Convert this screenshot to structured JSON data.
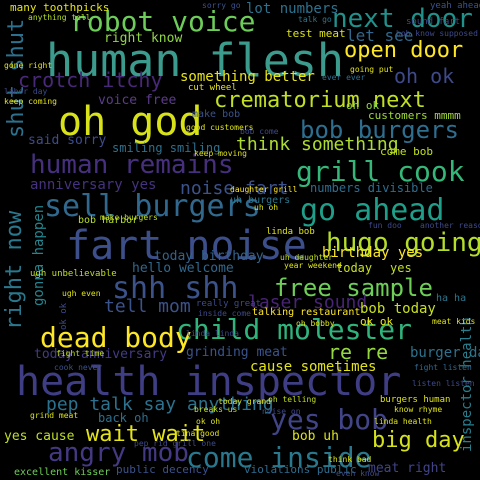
{
  "words": [
    {
      "text": "human flesh",
      "color": "#3b9b8d"
    },
    {
      "text": "health inspector",
      "color": "#3f3e85"
    },
    {
      "text": "fart noise",
      "color": "#3c4f8a"
    },
    {
      "text": "oh god",
      "color": "#d8e219"
    },
    {
      "text": "robot voice",
      "color": "#6dcd59"
    },
    {
      "text": "next door",
      "color": "#21918c"
    },
    {
      "text": "child molester",
      "color": "#2fb47c"
    },
    {
      "text": "crematorium next",
      "color": "#c2df23"
    },
    {
      "text": "bob burgers",
      "color": "#2e6e8e"
    },
    {
      "text": "human remains",
      "color": "#46307e"
    },
    {
      "text": "grill cook",
      "color": "#35b779"
    },
    {
      "text": "sell burgers",
      "color": "#31688e"
    },
    {
      "text": "go ahead",
      "color": "#1f9e89"
    },
    {
      "text": "come inside",
      "color": "#2a788e"
    },
    {
      "text": "dead body",
      "color": "#fde725"
    },
    {
      "text": "shh shh",
      "color": "#3b528b"
    },
    {
      "text": "hugo going",
      "color": "#b5de2b"
    },
    {
      "text": "free sample",
      "color": "#6ece58"
    },
    {
      "text": "yes bob",
      "color": "#414487"
    },
    {
      "text": "angry mob",
      "color": "#443983"
    },
    {
      "text": "wait wait",
      "color": "#e5e419"
    },
    {
      "text": "open door",
      "color": "#fde725"
    },
    {
      "text": "big day",
      "color": "#d5e21a"
    },
    {
      "text": "pep talk say anything",
      "color": "#2c728e"
    },
    {
      "text": "shut shut",
      "color": "#2c728e"
    },
    {
      "text": "right now",
      "color": "#2a788e"
    },
    {
      "text": "oh ok",
      "color": "#3e4a89"
    },
    {
      "text": "let see",
      "color": "#31688e"
    },
    {
      "text": "crotch itchy",
      "color": "#482878"
    },
    {
      "text": "noise fart",
      "color": "#3b528b"
    },
    {
      "text": "laser sound",
      "color": "#482475"
    },
    {
      "text": "think something",
      "color": "#addc30"
    },
    {
      "text": "re re",
      "color": "#95d840"
    },
    {
      "text": "tell mom",
      "color": "#3b528b"
    },
    {
      "text": "something better",
      "color": "#e7e419"
    },
    {
      "text": "voice free",
      "color": "#5c3c8a"
    },
    {
      "text": "anniversary yes",
      "color": "#46327e"
    },
    {
      "text": "lot numbers",
      "color": "#2c728e"
    },
    {
      "text": "right know",
      "color": "#8fd744"
    },
    {
      "text": "birthday yes",
      "color": "#fde725"
    },
    {
      "text": "hello welcome",
      "color": "#31688e"
    },
    {
      "text": "today birthday",
      "color": "#33638d"
    },
    {
      "text": "bob today",
      "color": "#c8e020"
    },
    {
      "text": "burger day",
      "color": "#2c728e"
    },
    {
      "text": "inspector health",
      "color": "#277f8e"
    },
    {
      "text": "cause sometimes",
      "color": "#e3e418"
    },
    {
      "text": "grinding meat",
      "color": "#3a538b"
    },
    {
      "text": "today anniversary",
      "color": "#443b84"
    },
    {
      "text": "smiling smiling",
      "color": "#2d708e"
    },
    {
      "text": "said sorry",
      "color": "#3e4c8a"
    },
    {
      "text": "gonna happen",
      "color": "#25848e"
    },
    {
      "text": "yes cause",
      "color": "#c0df25"
    },
    {
      "text": "back oh",
      "color": "#2e6f8e"
    },
    {
      "text": "bob uh",
      "color": "#dde318"
    },
    {
      "text": "many toothpicks",
      "color": "#e5e419"
    },
    {
      "text": "test meat",
      "color": "#dde318"
    },
    {
      "text": "customers mmmm",
      "color": "#a2da37"
    },
    {
      "text": "come bob",
      "color": "#c2df23"
    },
    {
      "text": "today",
      "color": "#c8e020"
    },
    {
      "text": "yes",
      "color": "#c0df25"
    },
    {
      "text": "ok ok",
      "color": "#eae51a"
    },
    {
      "text": "talking restaurant",
      "color": "#fde725"
    },
    {
      "text": "tell mom",
      "color": "#3b528b"
    },
    {
      "text": "uh burgers",
      "color": "#2a768e"
    },
    {
      "text": "wonder",
      "color": "#4ac16d"
    },
    {
      "text": "numbers divisible",
      "color": "#2e6d8e"
    },
    {
      "text": "public decency",
      "color": "#3b528b"
    },
    {
      "text": "violations public",
      "color": "#2f6c8e"
    },
    {
      "text": "meat right",
      "color": "#414487"
    },
    {
      "text": "excellent kisser",
      "color": "#6ece58"
    },
    {
      "text": "make bob",
      "color": "#3b528b"
    },
    {
      "text": "guess oh",
      "color": "#443983"
    },
    {
      "text": "oh ok",
      "color": "#8fd744"
    },
    {
      "text": "ha ha",
      "color": "#2a788e"
    },
    {
      "text": "bob harbor",
      "color": "#b8de29"
    },
    {
      "text": "anything tell",
      "color": "#b5de2b"
    },
    {
      "text": "sorry go",
      "color": "#3b528b"
    },
    {
      "text": "talk go",
      "color": "#2a788e"
    },
    {
      "text": "sound fart",
      "color": "#3e4a89"
    },
    {
      "text": "yeah ahead",
      "color": "#3b528b"
    },
    {
      "text": "bob know supposed",
      "color": "#3e4a89"
    },
    {
      "text": "gone right",
      "color": "#e5e419"
    },
    {
      "text": "labor day",
      "color": "#3e4a89"
    },
    {
      "text": "keep coming",
      "color": "#e5e419"
    },
    {
      "text": "going put",
      "color": "#e3e418"
    },
    {
      "text": "ever ever",
      "color": "#2e6e8e"
    },
    {
      "text": "cut wheel",
      "color": "#e5e419"
    },
    {
      "text": "bob come",
      "color": "#3e4a89"
    },
    {
      "text": "good customers",
      "color": "#dde318"
    },
    {
      "text": "make burgers",
      "color": "#c2df23"
    },
    {
      "text": "keep moving",
      "color": "#dde318"
    },
    {
      "text": "daughter grill",
      "color": "#fde725"
    },
    {
      "text": "linda bob",
      "color": "#dde318"
    },
    {
      "text": "ugh unbelievable",
      "color": "#c2df23"
    },
    {
      "text": "uh oh",
      "color": "#dde318"
    },
    {
      "text": "ugh even",
      "color": "#dde318"
    },
    {
      "text": "fight time",
      "color": "#c2df23"
    },
    {
      "text": "cook never",
      "color": "#3b528b"
    },
    {
      "text": "oh bobby",
      "color": "#dde318"
    },
    {
      "text": "ok oh",
      "color": "#dde318"
    },
    {
      "text": "really great",
      "color": "#3e4a89"
    },
    {
      "text": "inside come",
      "color": "#3e4a89"
    },
    {
      "text": "fight listen",
      "color": "#31688e"
    },
    {
      "text": "meat kids",
      "color": "#dde318"
    },
    {
      "text": "uh daughter",
      "color": "#c2df23"
    },
    {
      "text": "year weekend",
      "color": "#dde318"
    },
    {
      "text": "grind meat",
      "color": "#dde318"
    },
    {
      "text": "tina good",
      "color": "#e5e419"
    },
    {
      "text": "know rhyme",
      "color": "#dde318"
    },
    {
      "text": "burgers human",
      "color": "#dde318"
    },
    {
      "text": "linda health",
      "color": "#dde318"
    },
    {
      "text": "today grand",
      "color": "#dde318"
    },
    {
      "text": "oh telling",
      "color": "#c2df23"
    },
    {
      "text": "noise on",
      "color": "#3e4a89"
    },
    {
      "text": "breaks us",
      "color": "#c2df23"
    },
    {
      "text": "think bad",
      "color": "#dde318"
    },
    {
      "text": "even know",
      "color": "#3e4a89"
    },
    {
      "text": "pep rid grill one",
      "color": "#3e4a89"
    },
    {
      "text": "another reason",
      "color": "#3e4a89"
    },
    {
      "text": "fun doo",
      "color": "#3e4a89"
    },
    {
      "text": "listen listen",
      "color": "#3e4a89"
    },
    {
      "text": "linda linda",
      "color": "#3e4a89"
    },
    {
      "text": "yeah",
      "color": "#3e4a89"
    },
    {
      "text": "ahead",
      "color": "#3e4a89"
    },
    {
      "text": "everything ready",
      "color": "#3e4a89"
    },
    {
      "text": "daughter probably",
      "color": "#e5e419"
    },
    {
      "text": "sorry",
      "color": "#3e4a89"
    },
    {
      "text": "tell",
      "color": "#3e4a89"
    },
    {
      "text": "ok ok",
      "color": "#3e4a89"
    }
  ]
}
